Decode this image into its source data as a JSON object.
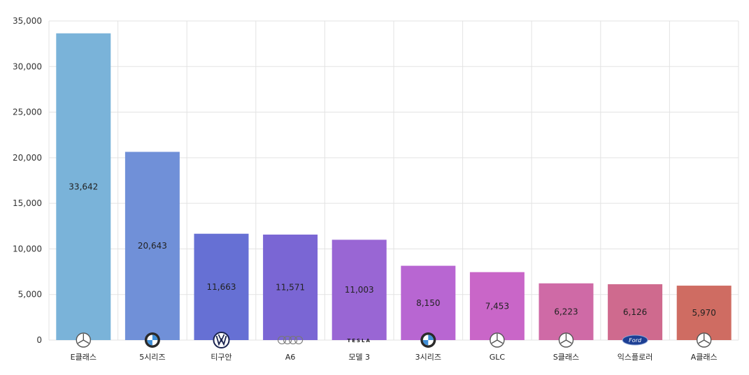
{
  "chart_data": {
    "type": "bar",
    "title": "",
    "xlabel": "",
    "ylabel": "",
    "ylim": [
      0,
      35000
    ],
    "yticks": [
      0,
      5000,
      10000,
      15000,
      20000,
      25000,
      30000,
      35000
    ],
    "ytick_labels": [
      "0",
      "5,000",
      "10,000",
      "15,000",
      "20,000",
      "25,000",
      "30,000",
      "35,000"
    ],
    "grid": true,
    "categories": [
      "E클래스",
      "5시리즈",
      "티구안",
      "A6",
      "모델 3",
      "3시리즈",
      "GLC",
      "S클래스",
      "익스플로러",
      "A클래스"
    ],
    "values": [
      33642,
      20643,
      11663,
      11571,
      11003,
      8150,
      7453,
      6223,
      6126,
      5970
    ],
    "data_labels": [
      "33,642",
      "20,643",
      "11,663",
      "11,571",
      "11,003",
      "8,150",
      "7,453",
      "6,223",
      "6,126",
      "5,970"
    ],
    "colors": [
      "#7ab3d9",
      "#7090d8",
      "#6670d4",
      "#7a66d4",
      "#9966d4",
      "#b866d2",
      "#c966c8",
      "#cf6aa6",
      "#cf6a8e",
      "#cf6c62"
    ],
    "brand_icons": [
      "mercedes-icon",
      "bmw-icon",
      "volkswagen-icon",
      "audi-icon",
      "tesla-icon",
      "bmw-icon",
      "mercedes-icon",
      "mercedes-icon",
      "ford-icon",
      "mercedes-icon"
    ],
    "tesla_wordmark": "TESLA",
    "ford_wordmark": "Ford"
  }
}
